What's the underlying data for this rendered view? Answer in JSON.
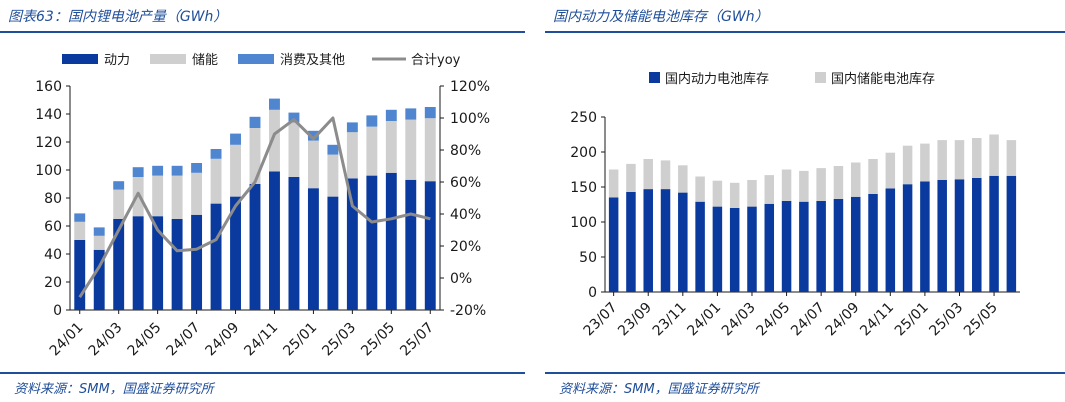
{
  "left": {
    "title": "图表63：国内锂电池产量（GWh）",
    "source": "资料来源：SMM，国盛证券研究所"
  },
  "right": {
    "title": "国内动力及储能电池库存（GWh）",
    "source": "资料来源：SMM，国盛证券研究所"
  },
  "colors": {
    "power": "#0b3a9e",
    "storage": "#cfcfcf",
    "consumer": "#4f86cf",
    "yoy": "#8c8c8c",
    "rule": "#1f4e9a"
  },
  "chart_data": [
    {
      "type": "bar",
      "stacked": true,
      "title": "图表63：国内锂电池产量（GWh）",
      "categories": [
        "24/01",
        "24/02",
        "24/03",
        "24/04",
        "24/05",
        "24/06",
        "24/07",
        "24/08",
        "24/09",
        "24/10",
        "24/11",
        "24/12",
        "25/01",
        "25/02",
        "25/03",
        "25/04",
        "25/05",
        "25/06",
        "25/07"
      ],
      "tick_labels": [
        "24/01",
        "24/03",
        "24/05",
        "24/07",
        "24/09",
        "24/11",
        "25/01",
        "25/03",
        "25/05",
        "25/07"
      ],
      "series": [
        {
          "name": "动力",
          "values": [
            50,
            43,
            65,
            67,
            67,
            65,
            68,
            76,
            81,
            90,
            99,
            95,
            87,
            81,
            94,
            96,
            98,
            93,
            92
          ]
        },
        {
          "name": "储能",
          "values": [
            13,
            10,
            21,
            28,
            29,
            31,
            30,
            32,
            37,
            40,
            44,
            39,
            34,
            30,
            33,
            35,
            37,
            43,
            45
          ]
        },
        {
          "name": "消费及其他",
          "values": [
            6,
            6,
            6,
            7,
            7,
            7,
            7,
            7,
            8,
            8,
            8,
            7,
            7,
            7,
            7,
            8,
            8,
            8,
            8
          ]
        }
      ],
      "line_series": {
        "name": "合计yoy",
        "axis": "right",
        "values": [
          -12,
          7,
          30,
          53,
          30,
          17,
          18,
          24,
          45,
          60,
          90,
          99,
          87,
          100,
          45,
          35,
          37,
          40,
          37
        ]
      },
      "ylim": [
        0,
        160
      ],
      "yticks": [
        0,
        20,
        40,
        60,
        80,
        100,
        120,
        140,
        160
      ],
      "y2lim": [
        -20,
        120
      ],
      "y2ticks": [
        "-20%",
        "0%",
        "20%",
        "40%",
        "60%",
        "80%",
        "100%",
        "120%"
      ],
      "legend_position": "top"
    },
    {
      "type": "bar",
      "stacked": true,
      "title": "国内动力及储能电池库存（GWh）",
      "categories": [
        "23/07",
        "23/08",
        "23/09",
        "23/10",
        "23/11",
        "23/12",
        "24/01",
        "24/02",
        "24/03",
        "24/04",
        "24/05",
        "24/06",
        "24/07",
        "24/08",
        "24/09",
        "24/10",
        "24/11",
        "24/12",
        "25/01",
        "25/02",
        "25/03",
        "25/04",
        "25/05",
        "25/06"
      ],
      "tick_labels": [
        "23/07",
        "23/09",
        "23/11",
        "24/01",
        "24/03",
        "24/05",
        "24/07",
        "24/09",
        "24/11",
        "25/01",
        "25/03",
        "25/05"
      ],
      "series": [
        {
          "name": "国内动力电池库存",
          "values": [
            135,
            143,
            147,
            147,
            142,
            129,
            122,
            120,
            122,
            126,
            130,
            129,
            130,
            133,
            136,
            140,
            148,
            154,
            158,
            160,
            161,
            163,
            166,
            166
          ]
        },
        {
          "name": "国内储能电池库存",
          "values": [
            40,
            40,
            43,
            41,
            39,
            36,
            37,
            36,
            38,
            41,
            45,
            44,
            47,
            47,
            49,
            50,
            51,
            55,
            54,
            57,
            56,
            57,
            59,
            51
          ]
        }
      ],
      "ylim": [
        0,
        250
      ],
      "yticks": [
        0,
        50,
        100,
        150,
        200,
        250
      ],
      "legend_position": "top"
    }
  ]
}
